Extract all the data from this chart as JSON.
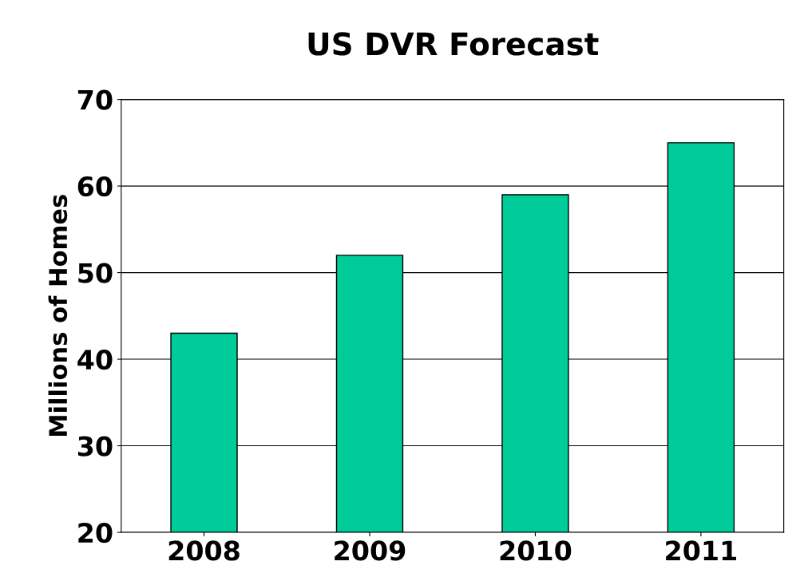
{
  "chart_data": {
    "type": "bar",
    "title": "US DVR Forecast",
    "ylabel": "Millions of Homes",
    "categories": [
      "2008",
      "2009",
      "2010",
      "2011"
    ],
    "values": [
      43,
      52,
      59,
      65
    ],
    "color": "#00cc99",
    "ylim": [
      20,
      70
    ],
    "yticks": [
      20,
      30,
      40,
      50,
      60,
      70
    ],
    "grid": "y",
    "legend": false
  }
}
